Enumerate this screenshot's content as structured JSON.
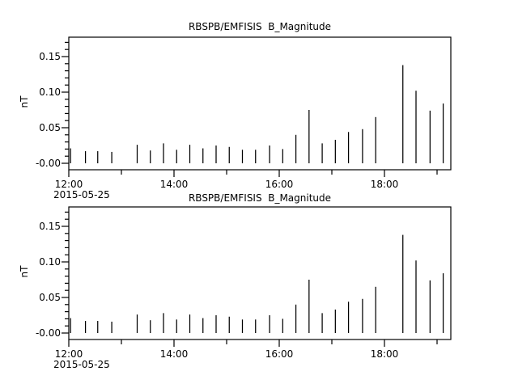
{
  "page": {
    "background": "#ffffff",
    "foreground": "#000000"
  },
  "chart_data": [
    {
      "type": "bar",
      "title": "RBSPB/EMFISIS  B_Magnitude",
      "ylabel": "nT",
      "xlabel": "",
      "date_label": "2015-05-25",
      "x": [
        "12:02",
        "12:19",
        "12:33",
        "12:49",
        "13:18",
        "13:33",
        "13:48",
        "14:03",
        "14:18",
        "14:33",
        "14:48",
        "15:03",
        "15:18",
        "15:33",
        "15:49",
        "16:04",
        "16:19",
        "16:34",
        "16:49",
        "17:04",
        "17:19",
        "17:35",
        "17:50",
        "18:21",
        "18:36",
        "18:52",
        "19:07"
      ],
      "values": [
        0.021,
        0.017,
        0.017,
        0.016,
        0.026,
        0.018,
        0.028,
        0.019,
        0.026,
        0.021,
        0.025,
        0.023,
        0.019,
        0.019,
        0.025,
        0.02,
        0.04,
        0.075,
        0.028,
        0.033,
        0.044,
        0.048,
        0.065,
        0.138,
        0.102,
        0.074,
        0.084
      ],
      "ylim": [
        -0.009,
        0.177
      ],
      "xlim": [
        "12:00",
        "19:15"
      ],
      "yticks": {
        "positions": [
          0.0,
          0.05,
          0.1,
          0.15
        ],
        "labels": [
          "-0.00",
          "0.05",
          "0.10",
          "0.15"
        ]
      },
      "ytick_minor_step": 0.01,
      "xticks_major": {
        "hours": [
          12,
          14,
          16,
          18
        ],
        "labels": [
          "12:00",
          "14:00",
          "16:00",
          "18:00"
        ]
      },
      "xticks_minor": {
        "hours": [
          13,
          15,
          17,
          19
        ]
      },
      "grid": false,
      "legend": null,
      "series_color": "#000000"
    },
    {
      "type": "bar",
      "title": "RBSPB/EMFISIS  B_Magnitude",
      "ylabel": "nT",
      "xlabel": "",
      "date_label": "2015-05-25",
      "x": [
        "12:02",
        "12:19",
        "12:33",
        "12:49",
        "13:18",
        "13:33",
        "13:48",
        "14:03",
        "14:18",
        "14:33",
        "14:48",
        "15:03",
        "15:18",
        "15:33",
        "15:49",
        "16:04",
        "16:19",
        "16:34",
        "16:49",
        "17:04",
        "17:19",
        "17:35",
        "17:50",
        "18:21",
        "18:36",
        "18:52",
        "19:07"
      ],
      "values": [
        0.021,
        0.017,
        0.017,
        0.016,
        0.026,
        0.018,
        0.028,
        0.019,
        0.026,
        0.021,
        0.025,
        0.023,
        0.019,
        0.019,
        0.025,
        0.02,
        0.04,
        0.075,
        0.028,
        0.033,
        0.044,
        0.048,
        0.065,
        0.138,
        0.102,
        0.074,
        0.084
      ],
      "ylim": [
        -0.009,
        0.177
      ],
      "xlim": [
        "12:00",
        "19:15"
      ],
      "yticks": {
        "positions": [
          0.0,
          0.05,
          0.1,
          0.15
        ],
        "labels": [
          "-0.00",
          "0.05",
          "0.10",
          "0.15"
        ]
      },
      "ytick_minor_step": 0.01,
      "xticks_major": {
        "hours": [
          12,
          14,
          16,
          18
        ],
        "labels": [
          "12:00",
          "14:00",
          "16:00",
          "18:00"
        ]
      },
      "xticks_minor": {
        "hours": [
          13,
          15,
          17,
          19
        ]
      },
      "grid": false,
      "legend": null,
      "series_color": "#000000"
    }
  ]
}
